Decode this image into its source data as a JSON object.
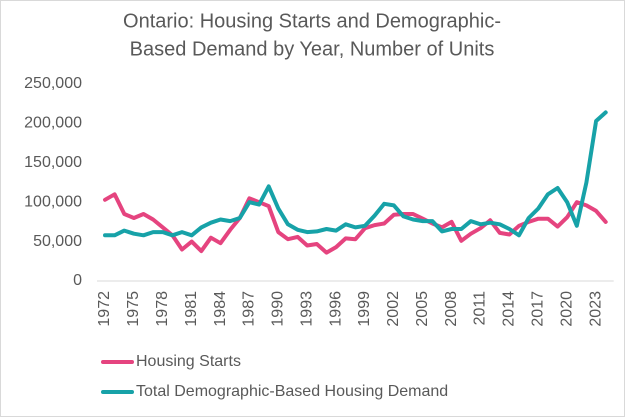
{
  "chart_data": {
    "type": "line",
    "title": [
      "Ontario: Housing Starts and Demographic-",
      "Based Demand by Year, Number of Units"
    ],
    "x": [
      1972,
      1973,
      1974,
      1975,
      1976,
      1977,
      1978,
      1979,
      1980,
      1981,
      1982,
      1983,
      1984,
      1985,
      1986,
      1987,
      1988,
      1989,
      1990,
      1991,
      1992,
      1993,
      1994,
      1995,
      1996,
      1997,
      1998,
      1999,
      2000,
      2001,
      2002,
      2003,
      2004,
      2005,
      2006,
      2007,
      2008,
      2009,
      2010,
      2011,
      2012,
      2013,
      2014,
      2015,
      2016,
      2017,
      2018,
      2019,
      2020,
      2021,
      2022,
      2023,
      2024
    ],
    "xlim": [
      1972,
      2024
    ],
    "xticks": [
      1972,
      1975,
      1978,
      1981,
      1984,
      1987,
      1990,
      1993,
      1996,
      1999,
      2002,
      2005,
      2008,
      2011,
      2014,
      2017,
      2020,
      2023
    ],
    "ylim": [
      0,
      250000
    ],
    "yticks": [
      0,
      {
        "value": 50000,
        "label": "50,000"
      },
      {
        "value": 100000,
        "label": "100,000"
      },
      {
        "value": 150000,
        "label": "150,000"
      },
      {
        "value": 200000,
        "label": "200,000"
      },
      {
        "value": 250000,
        "label": "250,000"
      }
    ],
    "grid": false,
    "legend": "bottom",
    "series": [
      {
        "name": "Housing Starts",
        "color": "#e5447f",
        "values": [
          103000,
          110000,
          85000,
          80000,
          85000,
          78000,
          68000,
          58000,
          40000,
          50000,
          38000,
          55000,
          48000,
          65000,
          80000,
          105000,
          100000,
          95000,
          62000,
          53000,
          56000,
          45000,
          47000,
          36000,
          43000,
          54000,
          53000,
          67000,
          71000,
          73000,
          84000,
          85000,
          85000,
          79000,
          73000,
          68000,
          75000,
          51000,
          60000,
          67000,
          77000,
          61000,
          59000,
          70000,
          75000,
          79000,
          79000,
          69000,
          81000,
          100000,
          96000,
          89000,
          75000
        ]
      },
      {
        "name": "Total Demographic-Based Housing Demand",
        "color": "#17a2a8",
        "values": [
          58000,
          58000,
          64000,
          60000,
          58000,
          62000,
          62000,
          58000,
          62000,
          58000,
          68000,
          74000,
          78000,
          76000,
          80000,
          100000,
          97000,
          120000,
          92000,
          72000,
          65000,
          62000,
          63000,
          66000,
          64000,
          72000,
          68000,
          70000,
          83000,
          98000,
          96000,
          82000,
          78000,
          76000,
          76000,
          63000,
          66000,
          66000,
          76000,
          72000,
          74000,
          72000,
          66000,
          58000,
          80000,
          92000,
          110000,
          118000,
          100000,
          70000,
          125000,
          203000,
          214000
        ]
      }
    ]
  }
}
